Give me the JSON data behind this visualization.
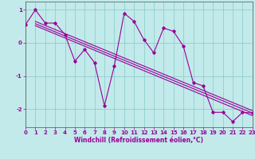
{
  "xlabel": "Windchill (Refroidissement éolien,°C)",
  "background_color": "#c2eaea",
  "line_color": "#990099",
  "xlim": [
    0,
    23
  ],
  "ylim": [
    -2.55,
    1.25
  ],
  "yticks": [
    1,
    0,
    -1,
    -2
  ],
  "xticks": [
    0,
    1,
    2,
    3,
    4,
    5,
    6,
    7,
    8,
    9,
    10,
    11,
    12,
    13,
    14,
    15,
    16,
    17,
    18,
    19,
    20,
    21,
    22,
    23
  ],
  "main_x": [
    0,
    1,
    2,
    3,
    4,
    5,
    6,
    7,
    8,
    9,
    10,
    11,
    12,
    13,
    14,
    15,
    16,
    17,
    18,
    19,
    20,
    21,
    22,
    23
  ],
  "main_y": [
    0.55,
    1.0,
    0.6,
    0.6,
    0.25,
    -0.55,
    -0.2,
    -0.6,
    -1.9,
    -0.7,
    0.9,
    0.65,
    0.1,
    -0.3,
    0.45,
    0.35,
    -0.1,
    -1.2,
    -1.3,
    -2.1,
    -2.1,
    -2.38,
    -2.1,
    -2.12
  ],
  "trend1_x": [
    1,
    23
  ],
  "trend1_y": [
    0.65,
    -2.05
  ],
  "trend2_x": [
    1,
    23
  ],
  "trend2_y": [
    0.58,
    -2.12
  ],
  "trend3_x": [
    1,
    23
  ],
  "trend3_y": [
    0.52,
    -2.2
  ]
}
